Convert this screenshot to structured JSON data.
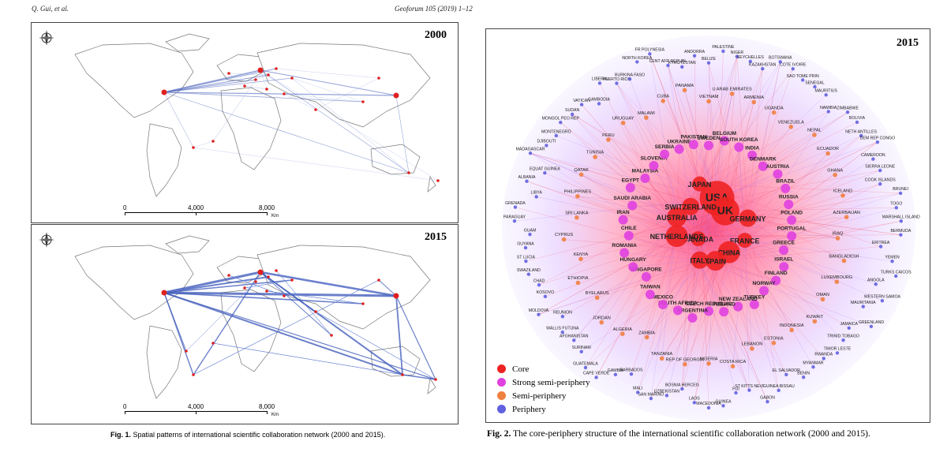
{
  "header": {
    "left": "Q. Gui, et al.",
    "right": "Geoforum 105 (2019) 1–12"
  },
  "figure1": {
    "panels": [
      {
        "year": "2000"
      },
      {
        "year": "2015"
      }
    ],
    "scale": {
      "labels": [
        "0",
        "4,000",
        "8,000"
      ],
      "unit": "Km"
    },
    "caption_label": "Fig. 1.",
    "caption_text": " Spatial patterns of international scientific collaboration network (2000 and 2015)."
  },
  "figure2": {
    "year": "2015",
    "legend": [
      {
        "label": "Core",
        "color": "#ee2222"
      },
      {
        "label": "Strong semi-periphery",
        "color": "#e040e0"
      },
      {
        "label": "Semi-periphery",
        "color": "#f08040"
      },
      {
        "label": "Periphery",
        "color": "#6060e0"
      }
    ],
    "caption_label": "Fig. 2.",
    "caption_text": " The core-periphery structure of the international scientific collaboration network (2000 and 2015).",
    "core": [
      "USA",
      "UK",
      "GERMANY",
      "FRANCE",
      "CHINA",
      "SPAIN",
      "ITALY",
      "CANADA",
      "NETHERLANDS",
      "AUSTRALIA",
      "SWITZERLAND",
      "JAPAN"
    ],
    "strong": [
      "SWEDEN",
      "BELGIUM",
      "SOUTH KOREA",
      "INDIA",
      "DENMARK",
      "AUSTRIA",
      "BRAZIL",
      "RUSSIA",
      "POLAND",
      "PORTUGAL",
      "GREECE",
      "ISRAEL",
      "FINLAND",
      "NORWAY",
      "TURKEY",
      "NEW ZEALAND",
      "IRELAND",
      "CZECH REPUBLIC",
      "ARGENTINA",
      "SOUTH AFRICA",
      "MEXICO",
      "TAIWAN",
      "SINGAPORE",
      "HUNGARY",
      "ROMANIA",
      "CHILE",
      "IRAN",
      "SAUDI ARABIA",
      "EGYPT",
      "MALAYSIA",
      "SLOVENIA",
      "SERBIA",
      "UKRAINE",
      "PAKISTAN"
    ],
    "semi": [
      "VIETNAM",
      "U ARAB EMIRATES",
      "ARMENIA",
      "UGANDA",
      "VENEZUELA",
      "NEPAL",
      "ECUADOR",
      "GHANA",
      "ICELAND",
      "AZERBAIJAN",
      "IRAQ",
      "BANGLADESH",
      "LUXEMBOURG",
      "OMAN",
      "KUWAIT",
      "INDONESIA",
      "ESTONIA",
      "LEBANON",
      "COSTA RICA",
      "NIGERIA",
      "REP OF GEORGIA",
      "TANZANIA",
      "ZAMBIA",
      "ALGERIA",
      "JORDAN",
      "BYELARUS",
      "ETHIOPIA",
      "KENYA",
      "CYPRUS",
      "SRI LANKA",
      "PHILIPPINES",
      "QATAR",
      "TUNISIA",
      "PERU",
      "URUGUAY",
      "MALAWI",
      "CUBA",
      "PANAMA"
    ],
    "periphery": [
      "BELIZE",
      "PALESTINE",
      "NIGER",
      "SEYCHELLES",
      "KAZAKHSTAN",
      "BOTSWANA",
      "COTE IVOIRE",
      "SAO TOME PRIN",
      "SENEGAL",
      "MAURITIUS",
      "NAMIBIA",
      "ZIMBABWE",
      "BOLIVIA",
      "NETH ANTILLES",
      "DEM REP CONGO",
      "CAMEROON",
      "SIERRA LEONE",
      "COOK ISLANDS",
      "BRUNEI",
      "TOGO",
      "MARSHALL ISLAND",
      "BERMUDA",
      "ERITREA",
      "YEMEN",
      "TURKS CAICOS",
      "ANGOLA",
      "WESTERN SAMOA",
      "MAURITANIA",
      "GREENLAND",
      "JAMAICA",
      "TRINID TOBAGO",
      "TIMOR LESTE",
      "RWANDA",
      "MYANMAR",
      "BENIN",
      "EL SALVADOR",
      "GUINEA BISSAU",
      "GABON",
      "ST KITTS NEVI",
      "FIJI",
      "GUINEA",
      "MACEDONIA",
      "LAOS",
      "BOSNIA HERCEG",
      "UZBEKISTAN",
      "SAN MARINO",
      "MALI",
      "BARBADOS",
      "GAMBIA",
      "CAPE VERDE",
      "GUATEMALA",
      "SURINAM",
      "AFGHANISTAN",
      "WALLIS FUTUNA",
      "REUNION",
      "MOLDOVA",
      "KOSOVO",
      "CHAD",
      "SWAZILAND",
      "ST LUCIA",
      "GUYANA",
      "GUAM",
      "PARAGUAY",
      "GRENADA",
      "LIBYA",
      "ALBANIA",
      "EQUAT GUINEA",
      "MADAGASCAR",
      "DJIBOUTI",
      "MONTENEGRO",
      "MONGOL PEO REP",
      "SUDAN",
      "VATICAN",
      "CAMBODIA",
      "LIBERIA",
      "PUERTO RICO",
      "BURKINA FASO",
      "NORTH KOREA",
      "FR POLYNESIA",
      "CENT AFR REPUBL",
      "KYRGYZSTAN",
      "ANDORRA"
    ]
  }
}
